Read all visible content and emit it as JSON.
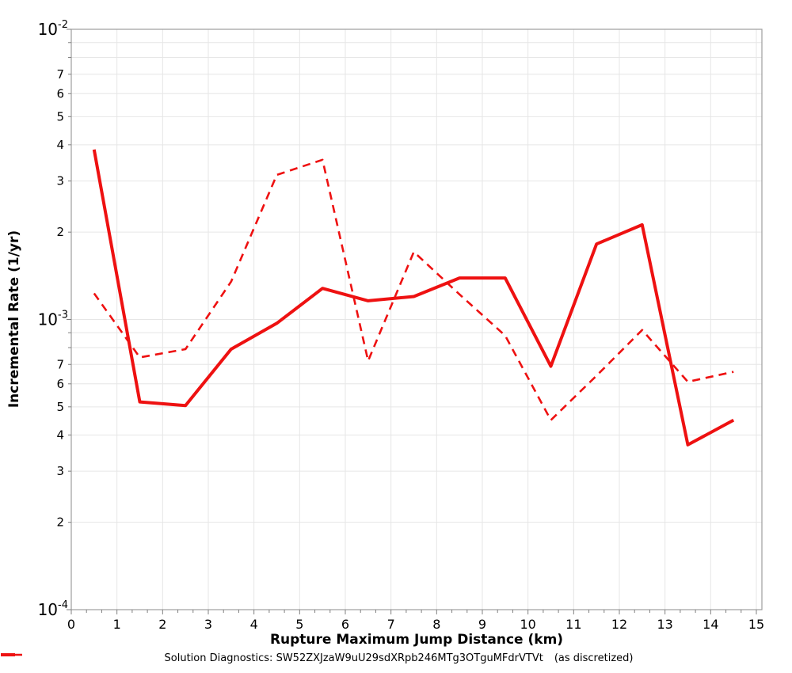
{
  "figure": {
    "background": "#ffffff",
    "border_color": "#9e9e9e",
    "grid_color": "#e6e6e6",
    "tick_color": "#808080",
    "text_color": "#000000",
    "accent_red": "#ee1111"
  },
  "chart_data": {
    "type": "line",
    "title": "",
    "xlabel": "Rupture Maximum Jump Distance (km)",
    "ylabel": "Incremental Rate (1/yr)",
    "x_axis": {
      "min": 0,
      "max": 15,
      "tick_labels": [
        "0",
        "1",
        "2",
        "3",
        "4",
        "5",
        "6",
        "7",
        "8",
        "9",
        "10",
        "11",
        "12",
        "13",
        "14",
        "15"
      ],
      "minor_divisions_per_unit": 3
    },
    "y_axis": {
      "scale": "log",
      "min": 0.0001,
      "max": 0.01,
      "decade_tick_labels": [
        {
          "base": "10",
          "exp": "-2"
        },
        {
          "base": "10",
          "exp": "-3"
        },
        {
          "base": "10",
          "exp": "-4"
        }
      ],
      "minor_tick_labels": [
        "7",
        "6",
        "5",
        "4",
        "3",
        "2"
      ]
    },
    "grid": true,
    "legend_position": "bottom-center",
    "x": [
      0.5,
      1.5,
      2.5,
      3.5,
      4.5,
      5.5,
      6.5,
      7.5,
      8.5,
      9.5,
      10.5,
      11.5,
      12.5,
      13.5,
      14.5
    ],
    "series": [
      {
        "name": "Solution Diagnostics: SW52ZXJzaW9uU29sdXRpb246MTg3OTguMFdrVTVt",
        "style": "solid",
        "color": "#ee1111",
        "width": 4,
        "values": [
          0.00385,
          0.00052,
          0.000505,
          0.00079,
          0.00097,
          0.00128,
          0.00116,
          0.0012,
          0.00139,
          0.00139,
          0.00069,
          0.00182,
          0.00212,
          0.00037,
          0.00045
        ]
      },
      {
        "name": "(as discretized)",
        "style": "dashed",
        "color": "#ee1111",
        "width": 2.6,
        "dash": "10 7",
        "values": [
          0.00123,
          0.00074,
          0.00079,
          0.00135,
          0.00315,
          0.00355,
          0.00072,
          0.00171,
          0.00122,
          0.00088,
          0.00045,
          0.00064,
          0.00092,
          0.00061,
          0.00066
        ]
      }
    ]
  }
}
